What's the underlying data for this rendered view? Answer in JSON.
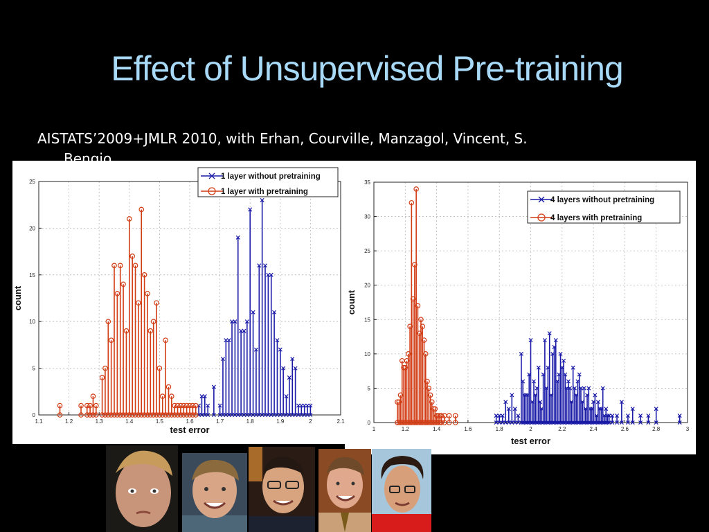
{
  "slide": {
    "title": "Effect of Unsupervised Pre-training",
    "subtitle_line1": "AISTATS’2009+JMLR 2010, with Erhan, Courville, Manzagol, Vincent, S.",
    "subtitle_line2": "Bengio"
  },
  "colors": {
    "without": "#1a1aa8",
    "with": "#d23c14",
    "title": "#a8daf8"
  },
  "chart_data": [
    {
      "type": "stem",
      "xlabel": "test error",
      "ylabel": "count",
      "xlim": [
        1.1,
        2.1
      ],
      "ylim": [
        0,
        25
      ],
      "xticks": [
        "1.1",
        "1.2",
        "1.3",
        "1.4",
        "1.5",
        "1.6",
        "1.7",
        "1.8",
        "1.9",
        "2",
        "2.1"
      ],
      "yticks": [
        "0",
        "5",
        "10",
        "15",
        "20",
        "25"
      ],
      "grid": true,
      "legend_position": "top-right",
      "series": [
        {
          "name": "1 layer without pretraining",
          "marker": "x",
          "color": "#1a1aa8",
          "x": [
            1.63,
            1.64,
            1.65,
            1.66,
            1.68,
            1.7,
            1.71,
            1.72,
            1.73,
            1.74,
            1.75,
            1.76,
            1.77,
            1.78,
            1.79,
            1.8,
            1.81,
            1.82,
            1.83,
            1.84,
            1.85,
            1.86,
            1.87,
            1.88,
            1.89,
            1.9,
            1.91,
            1.92,
            1.93,
            1.94,
            1.95,
            1.96,
            1.97,
            1.98,
            1.99,
            2.0
          ],
          "y": [
            1,
            2,
            2,
            1,
            3,
            1,
            6,
            8,
            8,
            10,
            10,
            19,
            9,
            9,
            10,
            22,
            11,
            7,
            16,
            23,
            16,
            15,
            15,
            11,
            8,
            7,
            5,
            2,
            4,
            6,
            5,
            1,
            1,
            1,
            1,
            1
          ]
        },
        {
          "name": "1 layer with pretraining",
          "marker": "o",
          "color": "#d23c14",
          "x": [
            1.17,
            1.24,
            1.26,
            1.27,
            1.28,
            1.29,
            1.31,
            1.32,
            1.33,
            1.34,
            1.35,
            1.36,
            1.37,
            1.38,
            1.39,
            1.4,
            1.41,
            1.42,
            1.43,
            1.44,
            1.45,
            1.46,
            1.47,
            1.48,
            1.49,
            1.5,
            1.51,
            1.52,
            1.53,
            1.54,
            1.55,
            1.56,
            1.57,
            1.58,
            1.59,
            1.6,
            1.61,
            1.62
          ],
          "y": [
            1,
            1,
            1,
            1,
            2,
            1,
            4,
            5,
            10,
            8,
            16,
            13,
            16,
            14,
            9,
            21,
            17,
            16,
            12,
            22,
            15,
            13,
            9,
            10,
            12,
            5,
            2,
            8,
            3,
            2,
            1,
            1,
            1,
            1,
            1,
            1,
            1,
            1
          ]
        }
      ]
    },
    {
      "type": "stem",
      "xlabel": "test error",
      "ylabel": "count",
      "xlim": [
        1,
        3
      ],
      "ylim": [
        0,
        35
      ],
      "xticks": [
        "1",
        "1.2",
        "1.4",
        "1.6",
        "1.8",
        "2",
        "2.2",
        "2.4",
        "2.6",
        "2.8",
        "3"
      ],
      "yticks": [
        "0",
        "5",
        "10",
        "15",
        "20",
        "25",
        "30",
        "35"
      ],
      "grid": true,
      "legend_position": "top-right",
      "series": [
        {
          "name": "4 layers without pretraining",
          "marker": "x",
          "color": "#1a1aa8",
          "x": [
            1.78,
            1.8,
            1.82,
            1.84,
            1.86,
            1.88,
            1.9,
            1.92,
            1.94,
            1.95,
            1.96,
            1.97,
            1.98,
            1.99,
            2.0,
            2.01,
            2.02,
            2.03,
            2.04,
            2.05,
            2.06,
            2.07,
            2.08,
            2.09,
            2.1,
            2.11,
            2.12,
            2.13,
            2.14,
            2.15,
            2.16,
            2.17,
            2.18,
            2.19,
            2.2,
            2.21,
            2.22,
            2.23,
            2.24,
            2.25,
            2.26,
            2.27,
            2.28,
            2.29,
            2.3,
            2.31,
            2.32,
            2.33,
            2.34,
            2.35,
            2.36,
            2.37,
            2.38,
            2.39,
            2.4,
            2.41,
            2.42,
            2.43,
            2.44,
            2.45,
            2.46,
            2.47,
            2.48,
            2.49,
            2.5,
            2.52,
            2.55,
            2.58,
            2.62,
            2.65,
            2.7,
            2.75,
            2.8,
            2.95
          ],
          "y": [
            1,
            1,
            1,
            3,
            2,
            4,
            2,
            1,
            10,
            6,
            4,
            4,
            4,
            7,
            12,
            3,
            6,
            4,
            5,
            8,
            3,
            2,
            7,
            12,
            5,
            8,
            13,
            4,
            10,
            11,
            12,
            6,
            7,
            10,
            8,
            9,
            7,
            5,
            6,
            5,
            3,
            8,
            5,
            4,
            6,
            7,
            5,
            3,
            5,
            2,
            4,
            5,
            2,
            2,
            3,
            4,
            1,
            3,
            2,
            2,
            5,
            1,
            2,
            1,
            1,
            1,
            1,
            3,
            1,
            2,
            1,
            1,
            2,
            1
          ]
        },
        {
          "name": "4 layers with pretraining",
          "marker": "o",
          "color": "#d23c14",
          "x": [
            1.15,
            1.16,
            1.17,
            1.18,
            1.19,
            1.2,
            1.21,
            1.22,
            1.23,
            1.24,
            1.25,
            1.26,
            1.27,
            1.28,
            1.29,
            1.3,
            1.31,
            1.32,
            1.33,
            1.34,
            1.35,
            1.36,
            1.37,
            1.38,
            1.39,
            1.4,
            1.41,
            1.42,
            1.43,
            1.45,
            1.48,
            1.52
          ],
          "y": [
            3,
            3,
            4,
            9,
            8,
            8,
            9,
            10,
            14,
            32,
            18,
            23,
            34,
            17,
            13,
            15,
            14,
            12,
            10,
            6,
            5,
            4,
            3,
            2,
            2,
            1,
            1,
            1,
            1,
            1,
            1,
            1
          ]
        }
      ]
    }
  ]
}
